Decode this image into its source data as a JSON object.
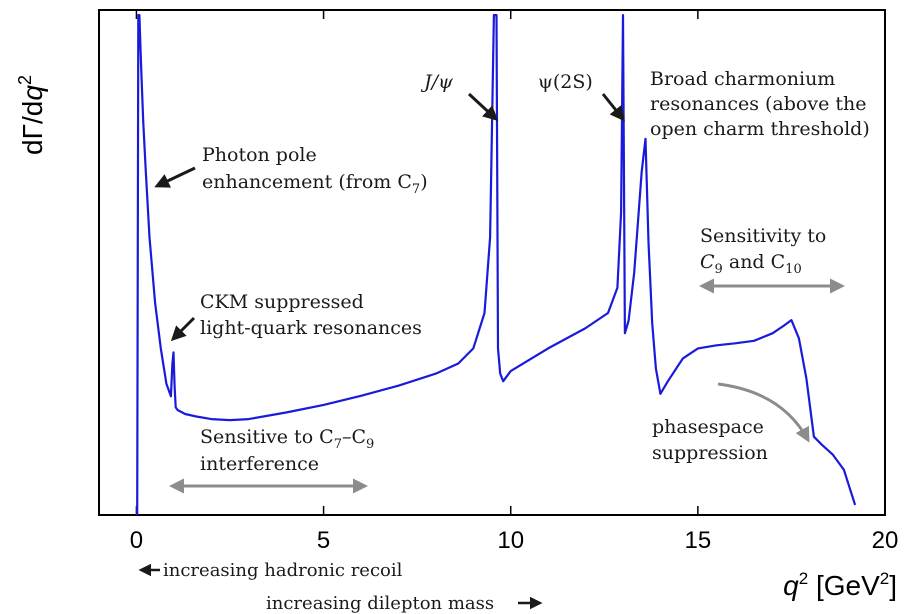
{
  "chart_data": {
    "type": "line",
    "xlabel_symbol": "q",
    "xlabel_power": "2",
    "xlabel_unit_pre": "[GeV",
    "xlabel_unit_power": "2",
    "xlabel_unit_post": "]",
    "ylabel_pre": "dΓ/d",
    "ylabel_symbol": "q",
    "ylabel_power": "2",
    "xlim": [
      -1,
      20
    ],
    "ylim": [
      0,
      1
    ],
    "x_ticks": [
      0,
      5,
      10,
      15,
      20
    ],
    "x_tick_labels": [
      "0",
      "5",
      "10",
      "15",
      "20"
    ],
    "grid": false,
    "series_color": "#1a1adb",
    "annotation_color": "#8c8c8c",
    "series": [
      {
        "x": [
          0.02,
          0.05,
          0.08,
          0.12,
          0.18,
          0.25,
          0.35,
          0.5,
          0.65,
          0.8,
          0.92,
          0.96,
          0.99,
          1.02,
          1.05,
          1.1,
          1.3,
          1.6,
          2.0,
          2.5,
          3.0,
          4.0,
          5.0,
          6.0,
          7.0,
          8.0,
          8.6,
          9.0,
          9.3,
          9.45,
          9.55,
          9.62,
          9.66,
          9.72,
          9.8,
          10.0,
          11.0,
          12.0,
          12.6,
          12.85,
          12.95,
          13.0,
          13.05,
          13.15,
          13.3,
          13.5,
          13.6,
          13.68,
          13.78,
          13.88,
          14.0,
          14.2,
          14.6,
          15.0,
          15.5,
          16.0,
          16.5,
          17.0,
          17.3,
          17.5,
          17.7,
          17.9,
          18.1,
          18.3,
          18.6,
          18.9,
          19.2
        ],
        "y": [
          0.0,
          0.99,
          0.99,
          0.9,
          0.78,
          0.68,
          0.55,
          0.42,
          0.33,
          0.26,
          0.235,
          0.3,
          0.322,
          0.255,
          0.213,
          0.208,
          0.2,
          0.195,
          0.19,
          0.188,
          0.19,
          0.203,
          0.218,
          0.236,
          0.256,
          0.28,
          0.3,
          0.33,
          0.4,
          0.55,
          0.99,
          0.99,
          0.33,
          0.28,
          0.265,
          0.285,
          0.33,
          0.37,
          0.4,
          0.45,
          0.6,
          0.99,
          0.36,
          0.385,
          0.48,
          0.68,
          0.745,
          0.54,
          0.38,
          0.29,
          0.24,
          0.265,
          0.31,
          0.33,
          0.336,
          0.34,
          0.345,
          0.36,
          0.375,
          0.386,
          0.35,
          0.27,
          0.155,
          0.14,
          0.12,
          0.09,
          0.02
        ]
      }
    ],
    "annotations": {
      "photon_pole": [
        "Photon pole",
        "enhancement (from C",
        "7",
        ")"
      ],
      "ckm": [
        "CKM suppressed",
        "light-quark resonances"
      ],
      "jpsi": "J/ψ",
      "psi2s": "ψ(2S)",
      "broad": [
        "Broad charmonium",
        "resonances (above the",
        "open charm threshold)"
      ],
      "sens_c9c10": [
        "Sensitivity to",
        "C",
        "9",
        " and C",
        "10"
      ],
      "sens_c7c9": [
        "Sensitive to C",
        "7",
        "–C",
        "9",
        "interference"
      ],
      "phasespace": [
        "phasespace",
        "suppression"
      ],
      "hadronic": "increasing hadronic recoil",
      "dilepton": "increasing dilepton mass"
    }
  }
}
